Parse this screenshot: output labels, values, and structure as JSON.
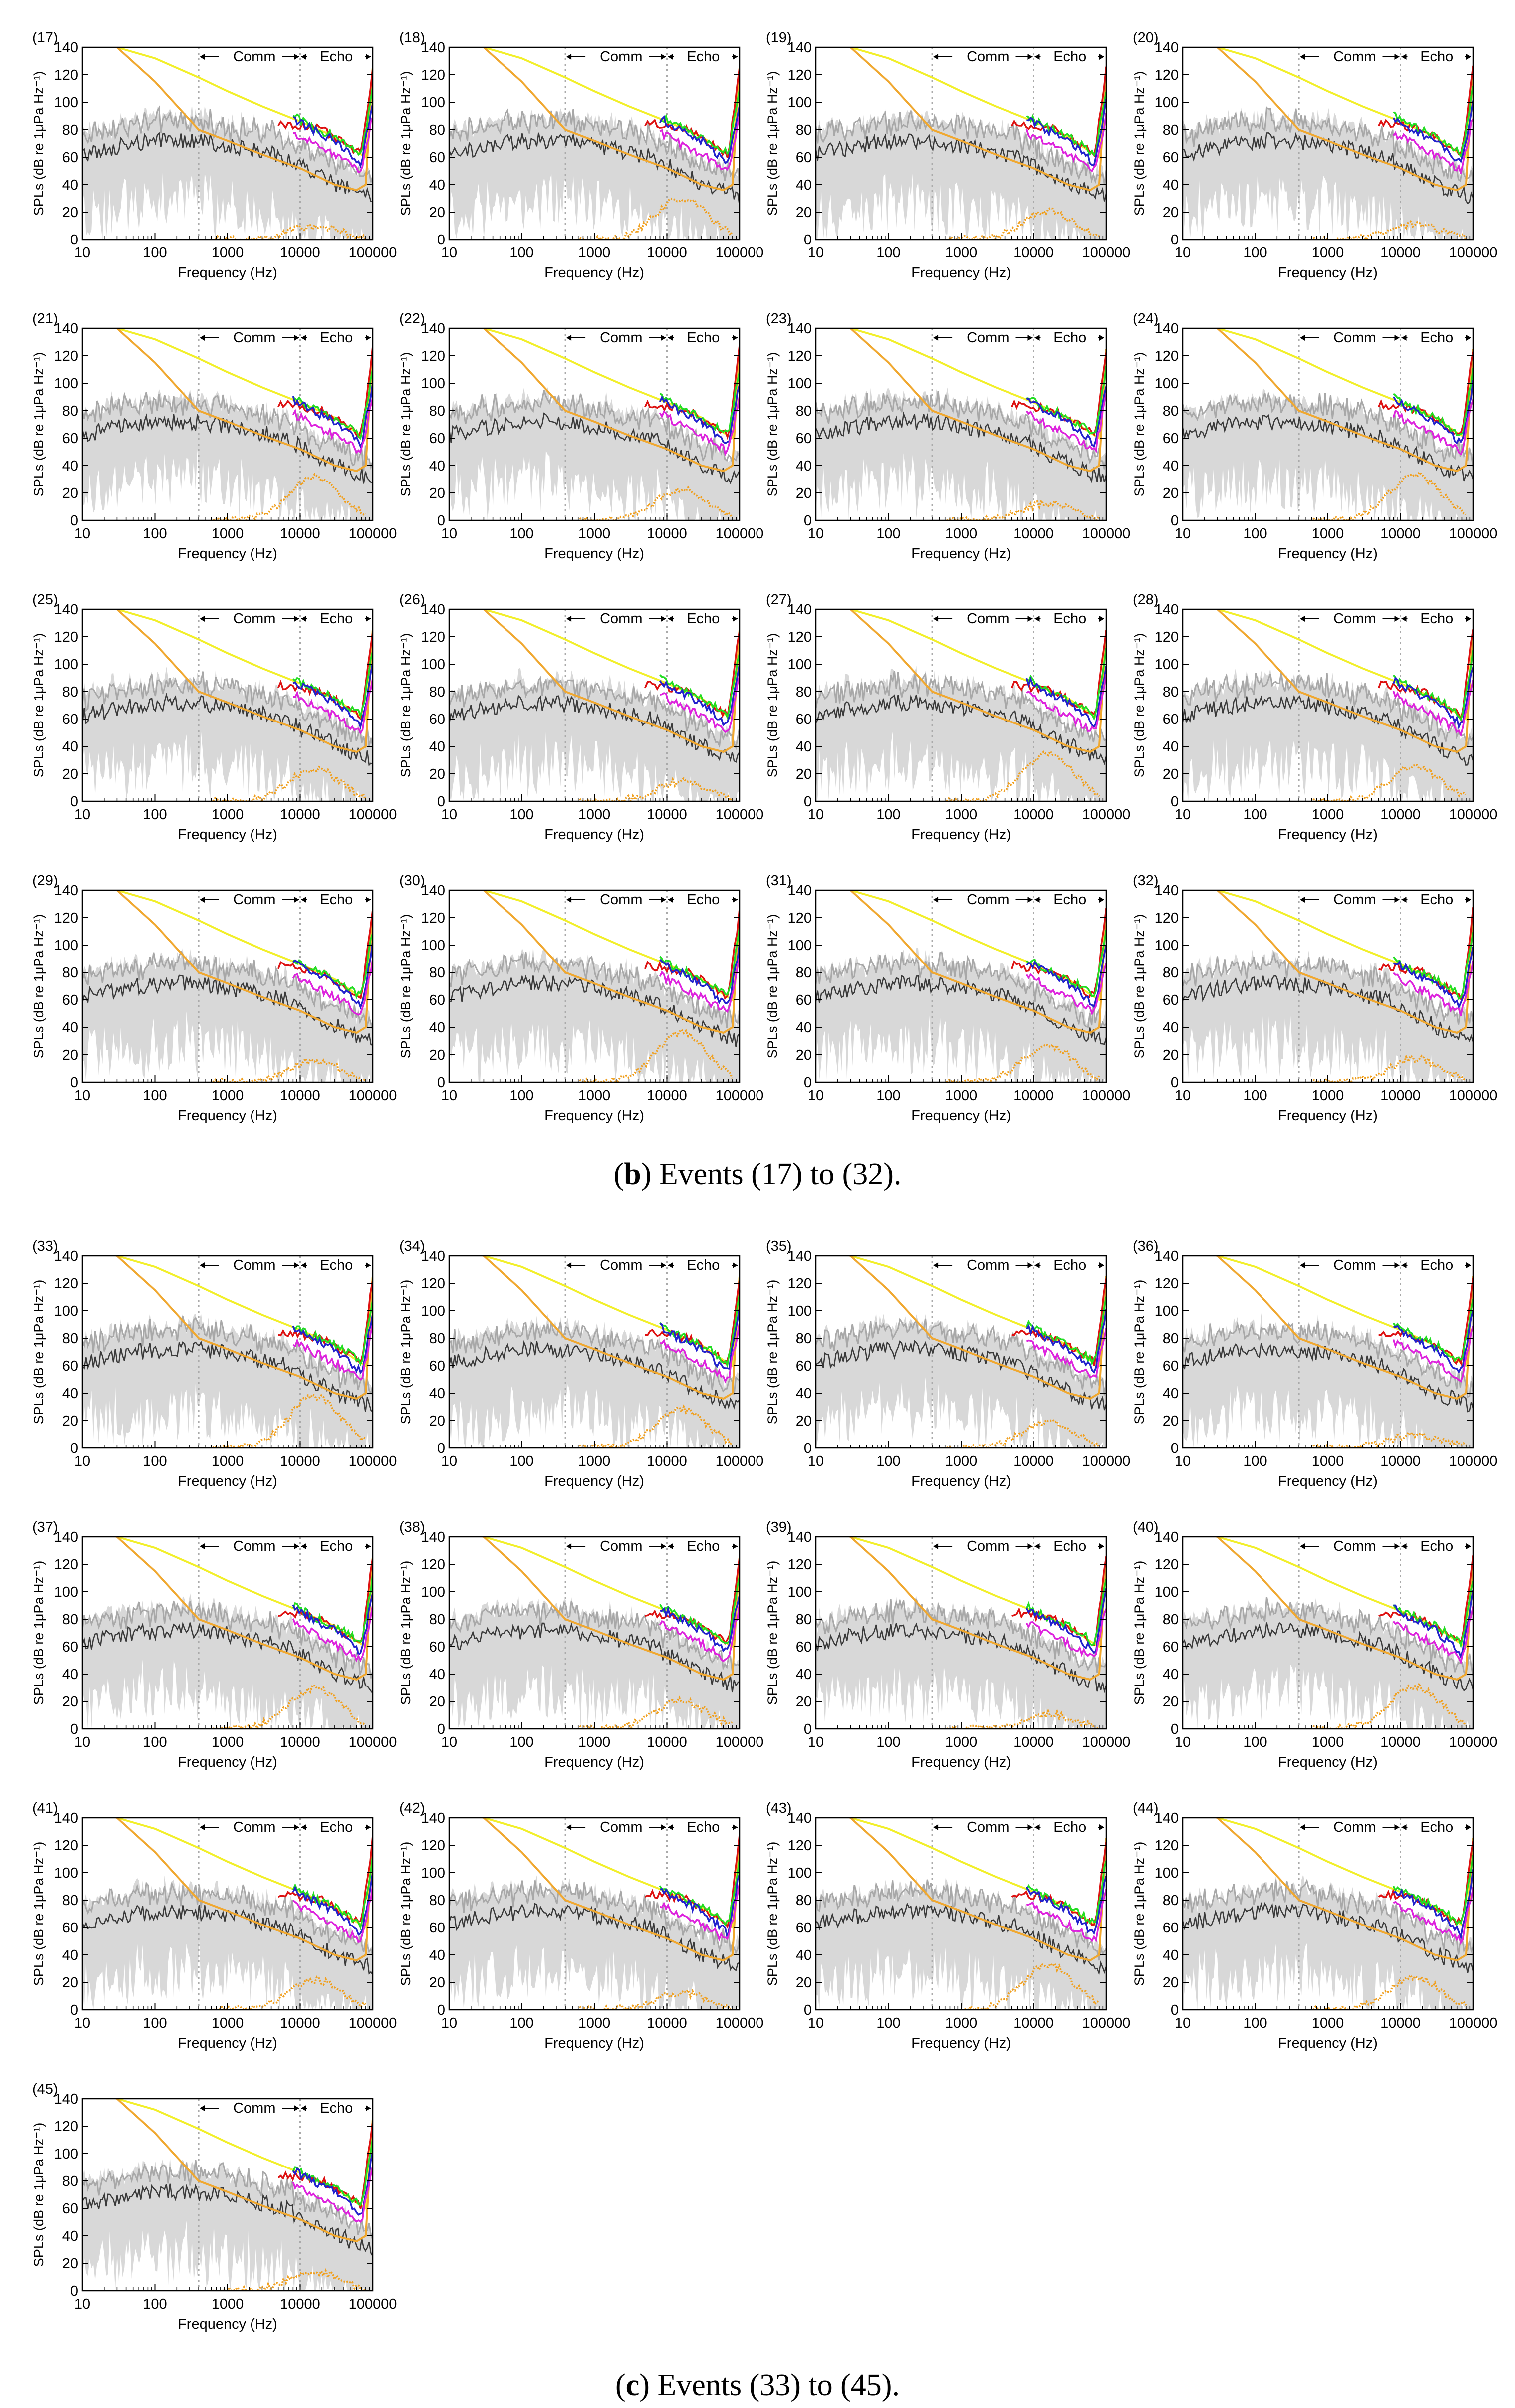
{
  "figure": {
    "captions": [
      {
        "letter": "b",
        "text": "Events (17) to (32)."
      },
      {
        "letter": "c",
        "text": "Events (33) to (45)."
      }
    ]
  },
  "chart_data": {
    "type": "line",
    "panel_template": {
      "xlabel": "Frequency (Hz)",
      "ylabel": "SPLs (dB re 1μPa Hz⁻¹)",
      "x_scale": "log",
      "xlim": [
        10,
        100000
      ],
      "ylim": [
        0,
        140
      ],
      "x_ticks": [
        10,
        100,
        1000,
        10000,
        100000
      ],
      "x_tick_labels": [
        "10",
        "100",
        "1000",
        "10000",
        "100000"
      ],
      "y_ticks": [
        0,
        20,
        40,
        60,
        80,
        100,
        120,
        140
      ],
      "y_tick_labels": [
        "0",
        "20",
        "40",
        "60",
        "80",
        "100",
        "120",
        "140"
      ],
      "band_labels": {
        "comm": "Comm",
        "echo": "Echo"
      },
      "band_boundaries_hz": [
        400,
        10000,
        100000
      ],
      "series_colors": {
        "background_range": "#d8d8d8",
        "upper_level": "#a8a8a8",
        "median_level": "#3a3a3a",
        "audiogram_threshold": "#f0a830",
        "masking_threshold": "#f2ef2a",
        "green": "#22dd22",
        "blue": "#2222cc",
        "magenta": "#dd22dd",
        "red": "#dd1111",
        "excess_orange": "#f0a020"
      }
    },
    "series_shapes": {
      "orange_threshold": {
        "x": [
          10,
          30,
          100,
          400,
          1000,
          3000,
          10000,
          30000,
          60000,
          80000,
          100000
        ],
        "y": [
          150,
          140,
          115,
          80,
          72,
          62,
          52,
          40,
          36,
          40,
          125
        ]
      },
      "yellow_threshold": {
        "x": [
          30,
          100,
          400,
          1000,
          3000,
          10000,
          30000,
          60000,
          80000,
          100000
        ],
        "y": [
          140,
          132,
          118,
          108,
          97,
          86,
          75,
          64,
          60,
          125
        ]
      },
      "red_band": {
        "x": [
          5000,
          10000,
          20000,
          40000,
          70000,
          100000
        ],
        "y": [
          85,
          83,
          80,
          70,
          62,
          125
        ]
      },
      "green_band": {
        "x": [
          8000,
          15000,
          30000,
          50000,
          70000,
          100000
        ],
        "y": [
          90,
          82,
          75,
          68,
          62,
          110
        ]
      },
      "blue_band": {
        "x": [
          8000,
          15000,
          30000,
          50000,
          70000,
          100000
        ],
        "y": [
          88,
          80,
          72,
          62,
          55,
          100
        ]
      },
      "magenta_band": {
        "x": [
          8000,
          15000,
          30000,
          50000,
          70000,
          100000
        ],
        "y": [
          78,
          70,
          62,
          55,
          50,
          90
        ]
      }
    },
    "panels": [
      {
        "id": "17",
        "label": "(17)"
      },
      {
        "id": "18",
        "label": "(18)"
      },
      {
        "id": "19",
        "label": "(19)"
      },
      {
        "id": "20",
        "label": "(20)"
      },
      {
        "id": "21",
        "label": "(21)"
      },
      {
        "id": "22",
        "label": "(22)"
      },
      {
        "id": "23",
        "label": "(23)"
      },
      {
        "id": "24",
        "label": "(24)"
      },
      {
        "id": "25",
        "label": "(25)"
      },
      {
        "id": "26",
        "label": "(26)"
      },
      {
        "id": "27",
        "label": "(27)"
      },
      {
        "id": "28",
        "label": "(28)"
      },
      {
        "id": "29",
        "label": "(29)"
      },
      {
        "id": "30",
        "label": "(30)"
      },
      {
        "id": "31",
        "label": "(31)"
      },
      {
        "id": "32",
        "label": "(32)"
      },
      {
        "id": "33",
        "label": "(33)"
      },
      {
        "id": "34",
        "label": "(34)"
      },
      {
        "id": "35",
        "label": "(35)"
      },
      {
        "id": "36",
        "label": "(36)"
      },
      {
        "id": "37",
        "label": "(37)"
      },
      {
        "id": "38",
        "label": "(38)"
      },
      {
        "id": "39",
        "label": "(39)"
      },
      {
        "id": "40",
        "label": "(40)"
      },
      {
        "id": "41",
        "label": "(41)"
      },
      {
        "id": "42",
        "label": "(42)"
      },
      {
        "id": "43",
        "label": "(43)"
      },
      {
        "id": "44",
        "label": "(44)"
      },
      {
        "id": "45",
        "label": "(45)"
      }
    ]
  }
}
